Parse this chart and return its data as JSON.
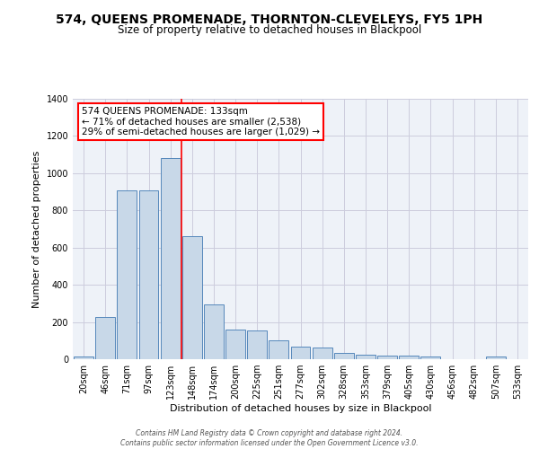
{
  "title": "574, QUEENS PROMENADE, THORNTON-CLEVELEYS, FY5 1PH",
  "subtitle": "Size of property relative to detached houses in Blackpool",
  "xlabel": "Distribution of detached houses by size in Blackpool",
  "ylabel": "Number of detached properties",
  "categories": [
    "20sqm",
    "46sqm",
    "71sqm",
    "97sqm",
    "123sqm",
    "148sqm",
    "174sqm",
    "200sqm",
    "225sqm",
    "251sqm",
    "277sqm",
    "302sqm",
    "328sqm",
    "353sqm",
    "379sqm",
    "405sqm",
    "430sqm",
    "456sqm",
    "482sqm",
    "507sqm",
    "533sqm"
  ],
  "values": [
    15,
    225,
    910,
    910,
    1080,
    660,
    295,
    160,
    155,
    100,
    70,
    65,
    35,
    25,
    20,
    20,
    15,
    0,
    0,
    15,
    0
  ],
  "bar_color": "#c8d8e8",
  "bar_edge_color": "#5588bb",
  "grid_color": "#ccccdd",
  "background_color": "#eef2f8",
  "vline_x": 4.5,
  "vline_color": "red",
  "annotation_text": "574 QUEENS PROMENADE: 133sqm\n← 71% of detached houses are smaller (2,538)\n29% of semi-detached houses are larger (1,029) →",
  "annotation_box_color": "white",
  "annotation_box_edge": "red",
  "footer_text": "Contains HM Land Registry data © Crown copyright and database right 2024.\nContains public sector information licensed under the Open Government Licence v3.0.",
  "ylim": [
    0,
    1400
  ],
  "yticks": [
    0,
    200,
    400,
    600,
    800,
    1000,
    1200,
    1400
  ],
  "title_fontsize": 10,
  "subtitle_fontsize": 8.5,
  "ylabel_fontsize": 8,
  "xlabel_fontsize": 8,
  "tick_fontsize": 7,
  "footer_fontsize": 5.5,
  "ann_fontsize": 7.5
}
